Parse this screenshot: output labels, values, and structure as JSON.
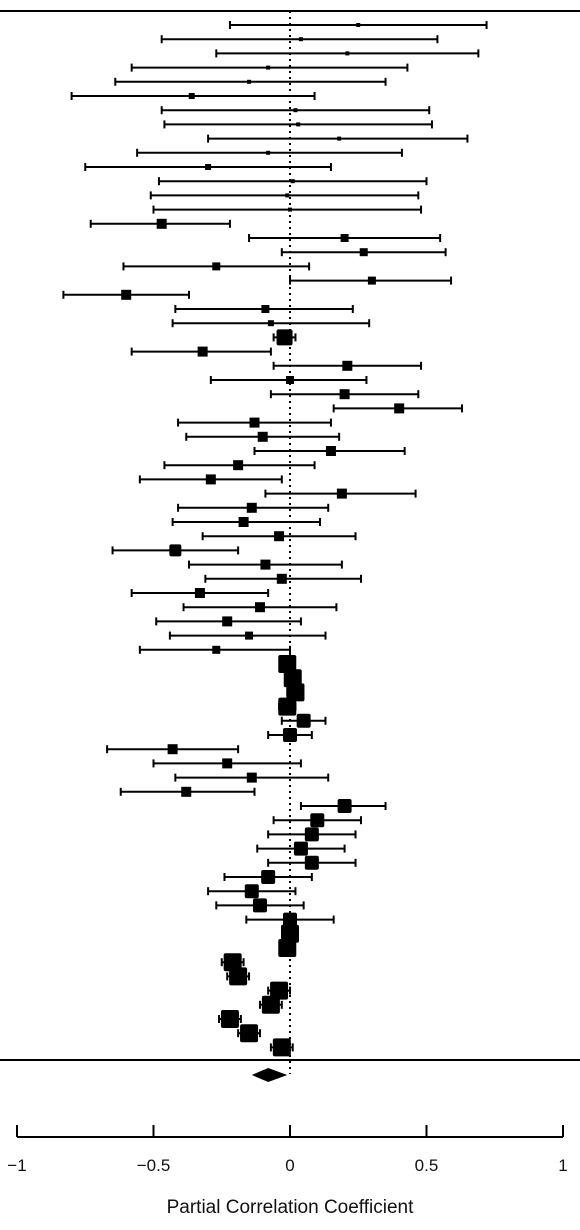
{
  "chart_data": {
    "type": "forest",
    "xlabel": "Partial Correlation Coefficient",
    "xlim": [
      -1,
      1
    ],
    "xticks": [
      -1,
      -0.5,
      0,
      0.5,
      1
    ],
    "xtick_labels": [
      "−1",
      "−0.5",
      "0",
      "0.5",
      "1"
    ],
    "reference_line": 0,
    "reference_line_style": "dotted",
    "studies": [
      {
        "est": 0.25,
        "lo": -0.22,
        "hi": 0.72,
        "w": 1
      },
      {
        "est": 0.04,
        "lo": -0.47,
        "hi": 0.54,
        "w": 1
      },
      {
        "est": 0.21,
        "lo": -0.27,
        "hi": 0.69,
        "w": 1
      },
      {
        "est": -0.08,
        "lo": -0.58,
        "hi": 0.43,
        "w": 1
      },
      {
        "est": -0.15,
        "lo": -0.64,
        "hi": 0.35,
        "w": 1
      },
      {
        "est": -0.36,
        "lo": -0.8,
        "hi": 0.09,
        "w": 2
      },
      {
        "est": 0.02,
        "lo": -0.47,
        "hi": 0.51,
        "w": 1
      },
      {
        "est": 0.03,
        "lo": -0.46,
        "hi": 0.52,
        "w": 1
      },
      {
        "est": 0.18,
        "lo": -0.3,
        "hi": 0.65,
        "w": 1
      },
      {
        "est": -0.08,
        "lo": -0.56,
        "hi": 0.41,
        "w": 1
      },
      {
        "est": -0.3,
        "lo": -0.75,
        "hi": 0.15,
        "w": 2
      },
      {
        "est": 0.01,
        "lo": -0.48,
        "hi": 0.5,
        "w": 1
      },
      {
        "est": -0.01,
        "lo": -0.51,
        "hi": 0.47,
        "w": 1
      },
      {
        "est": 0.0,
        "lo": -0.5,
        "hi": 0.48,
        "w": 1
      },
      {
        "est": -0.47,
        "lo": -0.73,
        "hi": -0.22,
        "w": 4
      },
      {
        "est": 0.2,
        "lo": -0.15,
        "hi": 0.55,
        "w": 3
      },
      {
        "est": 0.27,
        "lo": -0.03,
        "hi": 0.57,
        "w": 3
      },
      {
        "est": -0.27,
        "lo": -0.61,
        "hi": 0.07,
        "w": 3
      },
      {
        "est": 0.3,
        "lo": 0.0,
        "hi": 0.59,
        "w": 3
      },
      {
        "est": -0.6,
        "lo": -0.83,
        "hi": -0.37,
        "w": 4
      },
      {
        "est": -0.09,
        "lo": -0.42,
        "hi": 0.23,
        "w": 3
      },
      {
        "est": -0.07,
        "lo": -0.43,
        "hi": 0.29,
        "w": 2
      },
      {
        "est": -0.02,
        "lo": -0.06,
        "hi": 0.02,
        "w": 7
      },
      {
        "est": -0.32,
        "lo": -0.58,
        "hi": -0.07,
        "w": 4
      },
      {
        "est": 0.21,
        "lo": -0.06,
        "hi": 0.48,
        "w": 4
      },
      {
        "est": 0.0,
        "lo": -0.29,
        "hi": 0.28,
        "w": 3
      },
      {
        "est": 0.2,
        "lo": -0.07,
        "hi": 0.47,
        "w": 4
      },
      {
        "est": 0.4,
        "lo": 0.16,
        "hi": 0.63,
        "w": 4
      },
      {
        "est": -0.13,
        "lo": -0.41,
        "hi": 0.15,
        "w": 4
      },
      {
        "est": -0.1,
        "lo": -0.38,
        "hi": 0.18,
        "w": 4
      },
      {
        "est": 0.15,
        "lo": -0.13,
        "hi": 0.42,
        "w": 4
      },
      {
        "est": -0.19,
        "lo": -0.46,
        "hi": 0.09,
        "w": 4
      },
      {
        "est": -0.29,
        "lo": -0.55,
        "hi": -0.03,
        "w": 4
      },
      {
        "est": 0.19,
        "lo": -0.09,
        "hi": 0.46,
        "w": 4
      },
      {
        "est": -0.14,
        "lo": -0.41,
        "hi": 0.14,
        "w": 4
      },
      {
        "est": -0.17,
        "lo": -0.43,
        "hi": 0.11,
        "w": 4
      },
      {
        "est": -0.04,
        "lo": -0.32,
        "hi": 0.24,
        "w": 4
      },
      {
        "est": -0.42,
        "lo": -0.65,
        "hi": -0.19,
        "w": 5
      },
      {
        "est": -0.09,
        "lo": -0.37,
        "hi": 0.19,
        "w": 4
      },
      {
        "est": -0.03,
        "lo": -0.31,
        "hi": 0.26,
        "w": 4
      },
      {
        "est": -0.33,
        "lo": -0.58,
        "hi": -0.08,
        "w": 4
      },
      {
        "est": -0.11,
        "lo": -0.39,
        "hi": 0.17,
        "w": 4
      },
      {
        "est": -0.23,
        "lo": -0.49,
        "hi": 0.04,
        "w": 4
      },
      {
        "est": -0.15,
        "lo": -0.44,
        "hi": 0.13,
        "w": 3
      },
      {
        "est": -0.27,
        "lo": -0.55,
        "hi": 0.0,
        "w": 3
      },
      {
        "est": -0.01,
        "lo": -0.03,
        "hi": 0.01,
        "w": 8
      },
      {
        "est": 0.01,
        "lo": -0.01,
        "hi": 0.03,
        "w": 8
      },
      {
        "est": 0.02,
        "lo": -0.01,
        "hi": 0.04,
        "w": 8
      },
      {
        "est": -0.01,
        "lo": -0.04,
        "hi": 0.02,
        "w": 8
      },
      {
        "est": 0.05,
        "lo": -0.03,
        "hi": 0.13,
        "w": 6
      },
      {
        "est": 0.0,
        "lo": -0.08,
        "hi": 0.08,
        "w": 6
      },
      {
        "est": -0.43,
        "lo": -0.67,
        "hi": -0.19,
        "w": 4
      },
      {
        "est": -0.23,
        "lo": -0.5,
        "hi": 0.04,
        "w": 4
      },
      {
        "est": -0.14,
        "lo": -0.42,
        "hi": 0.14,
        "w": 4
      },
      {
        "est": -0.38,
        "lo": -0.62,
        "hi": -0.13,
        "w": 4
      },
      {
        "est": 0.2,
        "lo": 0.04,
        "hi": 0.35,
        "w": 6
      },
      {
        "est": 0.1,
        "lo": -0.06,
        "hi": 0.26,
        "w": 6
      },
      {
        "est": 0.08,
        "lo": -0.08,
        "hi": 0.24,
        "w": 6
      },
      {
        "est": 0.04,
        "lo": -0.12,
        "hi": 0.2,
        "w": 6
      },
      {
        "est": 0.08,
        "lo": -0.08,
        "hi": 0.24,
        "w": 6
      },
      {
        "est": -0.08,
        "lo": -0.24,
        "hi": 0.08,
        "w": 6
      },
      {
        "est": -0.14,
        "lo": -0.3,
        "hi": 0.02,
        "w": 6
      },
      {
        "est": -0.11,
        "lo": -0.27,
        "hi": 0.05,
        "w": 6
      },
      {
        "est": 0.0,
        "lo": -0.16,
        "hi": 0.16,
        "w": 6
      },
      {
        "est": 0.0,
        "lo": -0.02,
        "hi": 0.02,
        "w": 8
      },
      {
        "est": -0.01,
        "lo": -0.03,
        "hi": 0.01,
        "w": 8
      },
      {
        "est": -0.21,
        "lo": -0.25,
        "hi": -0.17,
        "w": 8
      },
      {
        "est": -0.19,
        "lo": -0.23,
        "hi": -0.15,
        "w": 8
      },
      {
        "est": -0.04,
        "lo": -0.08,
        "hi": 0.0,
        "w": 8
      },
      {
        "est": -0.07,
        "lo": -0.11,
        "hi": -0.03,
        "w": 8
      },
      {
        "est": -0.22,
        "lo": -0.26,
        "hi": -0.18,
        "w": 8
      },
      {
        "est": -0.15,
        "lo": -0.19,
        "hi": -0.11,
        "w": 8
      },
      {
        "est": -0.03,
        "lo": -0.07,
        "hi": 0.01,
        "w": 8
      }
    ],
    "summary": {
      "est": -0.08,
      "lo": -0.14,
      "hi": -0.01
    }
  }
}
